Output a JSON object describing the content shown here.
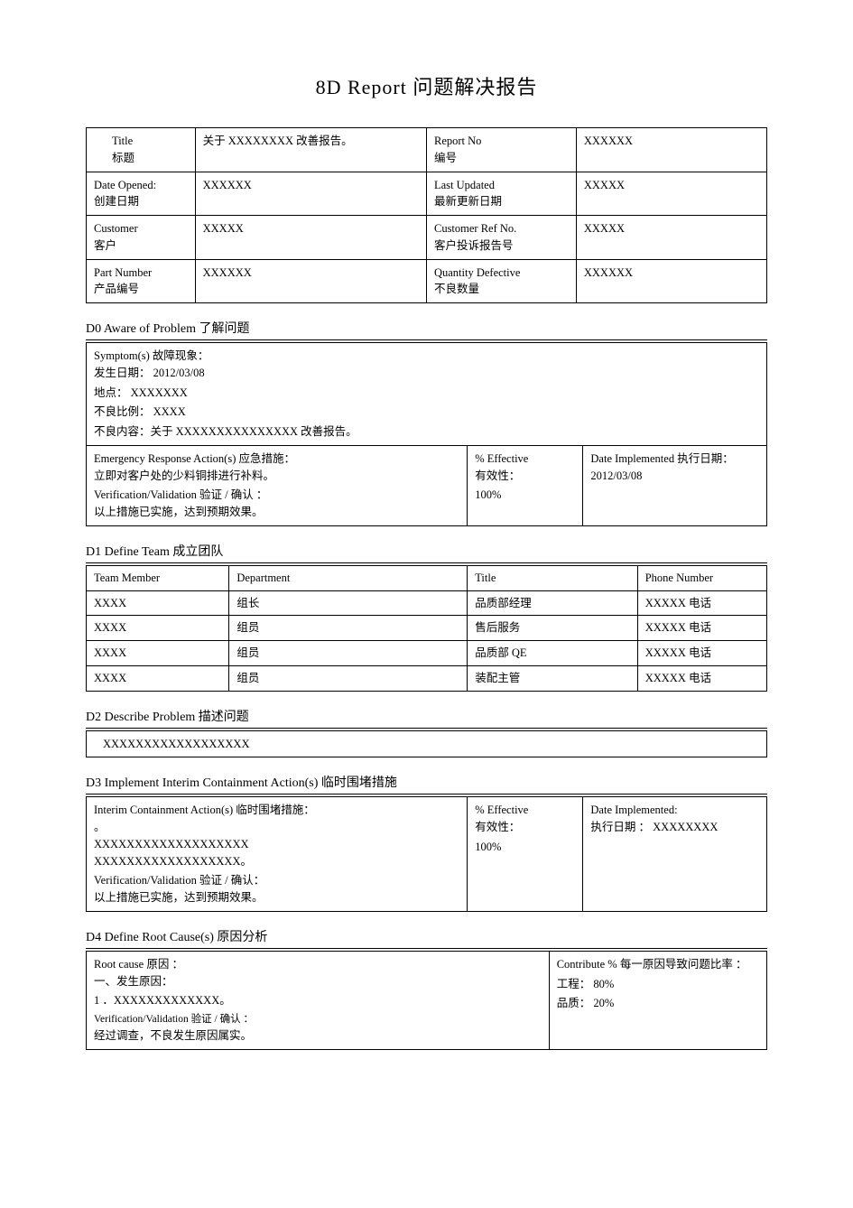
{
  "title": "8D  Report    问题解决报告",
  "header": {
    "rows": [
      {
        "l1a": "Title",
        "l1b": "标题",
        "v1": "关于 XXXXXXXX 改善报告。",
        "l2a": "Report  No",
        "l2b": "编号",
        "v2": "XXXXXX"
      },
      {
        "l1a": "Date  Opened:",
        "l1b": "创建日期",
        "v1": "XXXXXX",
        "l2a": "Last  Updated",
        "l2b": "最新更新日期",
        "v2": "XXXXX"
      },
      {
        "l1a": "Customer",
        "l1b": "客户",
        "v1": "XXXXX",
        "l2a": "Customer  Ref  No.",
        "l2b": "客户投诉报告号",
        "v2": "XXXXX"
      },
      {
        "l1a": "Part  Number",
        "l1b": "产品编号",
        "v1": "XXXXXX",
        "l2a": "Quantity  Defective",
        "l2b": "不良数量",
        "v2": "XXXXXX"
      }
    ]
  },
  "d0": {
    "heading": "D0  Aware  of  Problem  了解问题",
    "symptom_label": "Symptom(s)    故障现象：",
    "line_date": "发生日期：  2012/03/08",
    "line_place": "地点： XXXXXXX",
    "line_ratio": "不良比例： XXXX",
    "line_content": "不良内容：关于 XXXXXXXXXXXXXXX 改善报告。",
    "emergency_label": "Emergency  Response  Action(s)    应急措施：",
    "emergency_text": "立即对客户处的少料铜排进行补料。",
    "verify_label": "Verification/Validation    验证 / 确认 ：",
    "verify_text": "以上措施已实施，达到预期效果。",
    "eff_label": "%  Effective",
    "eff_label_cn": "有效性：",
    "eff_value": "100%",
    "date_impl_label": "Date  Implemented    执行日期：  2012/03/08"
  },
  "d1": {
    "heading": "D1  Define  Team  成立团队",
    "cols": [
      "Team  Member",
      "Department",
      "Title",
      "Phone  Number"
    ],
    "rows": [
      [
        "XXXX",
        "组长",
        "品质部经理",
        "XXXXX 电话"
      ],
      [
        "XXXX",
        "组员",
        "售后服务",
        "XXXXX 电话"
      ],
      [
        "XXXX",
        "组员",
        "品质部  QE",
        "XXXXX 电话"
      ],
      [
        "XXXX",
        "组员",
        "装配主管",
        "XXXXX 电话"
      ]
    ]
  },
  "d2": {
    "heading": "D2  Describe  Problem   描述问题",
    "text": "XXXXXXXXXXXXXXXXXX"
  },
  "d3": {
    "heading": "D3  Implement  Interim  Containment  Action(s)      临时围堵措施",
    "label": "Interim  Containment  Action(s)     临时围堵措施：",
    "blank": "                              。",
    "line1": "XXXXXXXXXXXXXXXXXXX",
    "line2": "XXXXXXXXXXXXXXXXXX。",
    "verify_label": "Verification/Validation    验证 / 确认：",
    "verify_text": "以上措施已实施，达到预期效果。",
    "eff_label": "%  Effective",
    "eff_label_cn": "有效性：",
    "eff_value": "100%",
    "date_label": "Date  Implemented:",
    "date_text": "执行日期 ： XXXXXXXX"
  },
  "d4": {
    "heading": "D4  Define  Root  Cause(s)  原因分析",
    "root_label": "Root  cause  原因 ：",
    "line1": "一、发生原因：",
    "line2": "1 ．XXXXXXXXXXXXX。",
    "verify_label": "Verification/Validation  验证 / 确认 ：",
    "verify_text": "经过调查，不良发生原因属实。",
    "contrib_label": "Contribute   %   每一原因导致问题比率 ：",
    "contrib1": "工程： 80%",
    "contrib2": "品质： 20%"
  }
}
